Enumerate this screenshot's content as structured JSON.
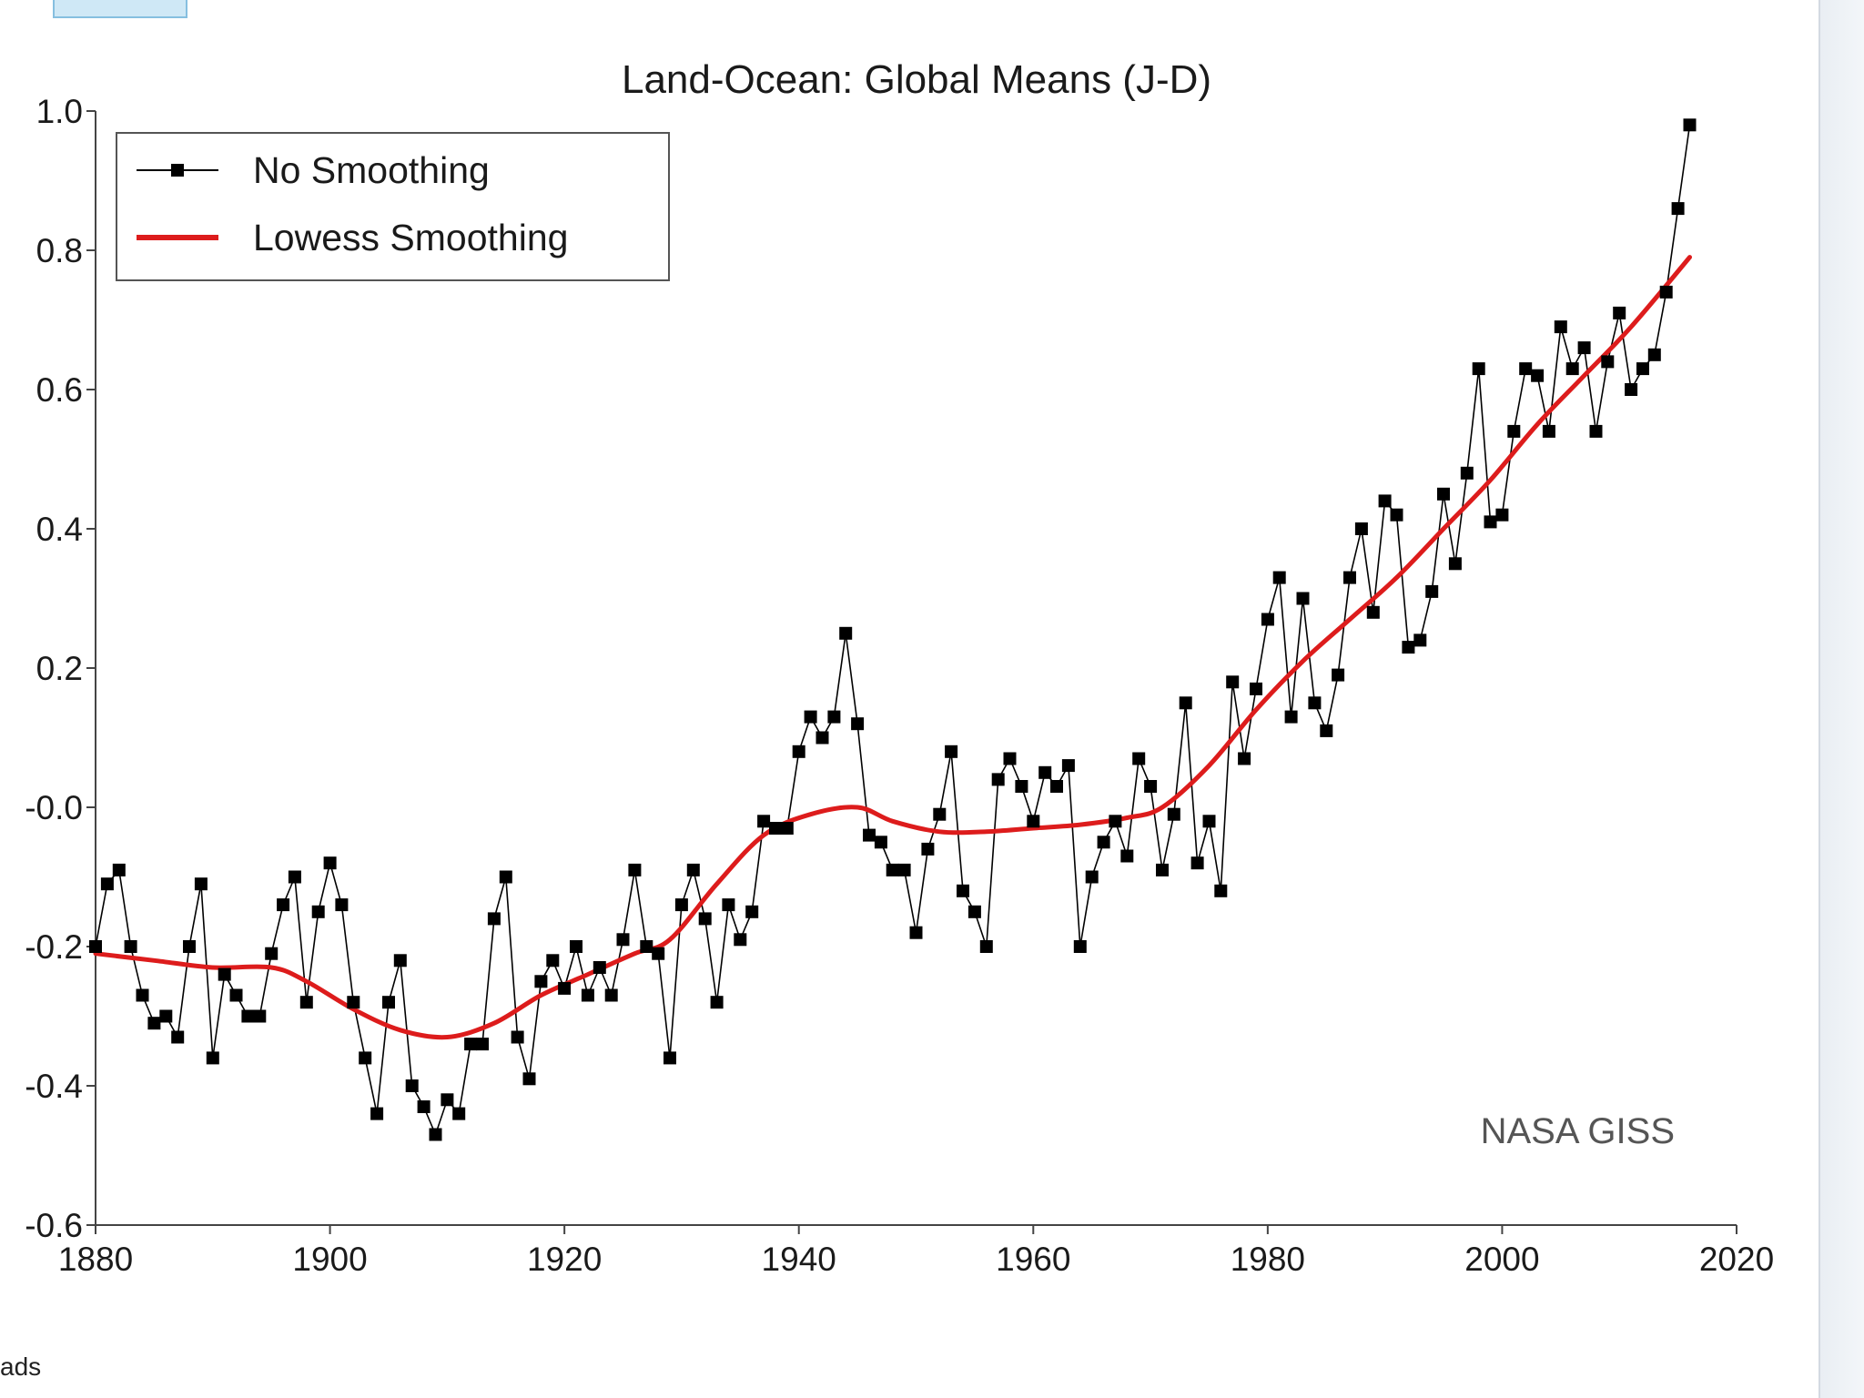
{
  "page": {
    "corner_text": "ads"
  },
  "chart_data": {
    "type": "line",
    "title": "Land-Ocean: Global Means (J-D)",
    "xlabel": "",
    "ylabel": "",
    "xlim": [
      1880,
      2020
    ],
    "ylim": [
      -0.6,
      1.0
    ],
    "x_ticks": [
      1880,
      1900,
      1920,
      1940,
      1960,
      1980,
      2000,
      2020
    ],
    "x_tick_labels": [
      "1880",
      "1900",
      "1920",
      "1940",
      "1960",
      "1980",
      "2000",
      "2020"
    ],
    "y_ticks": [
      1.0,
      0.8,
      0.6,
      0.4,
      0.2,
      0.0,
      -0.2,
      -0.4,
      -0.6
    ],
    "y_tick_labels": [
      "1.0",
      "0.8",
      "0.6",
      "0.4",
      "0.2",
      "-0.0",
      "-0.2",
      "-0.4",
      "-0.6"
    ],
    "grid": false,
    "legend_position": "top-left",
    "annotation": "NASA GISS",
    "colors": {
      "raw": "#000000",
      "smooth": "#dd1c1c"
    },
    "series": [
      {
        "name": "No Smoothing",
        "style": "line-with-square-markers",
        "x": [
          1880,
          1881,
          1882,
          1883,
          1884,
          1885,
          1886,
          1887,
          1888,
          1889,
          1890,
          1891,
          1892,
          1893,
          1894,
          1895,
          1896,
          1897,
          1898,
          1899,
          1900,
          1901,
          1902,
          1903,
          1904,
          1905,
          1906,
          1907,
          1908,
          1909,
          1910,
          1911,
          1912,
          1913,
          1914,
          1915,
          1916,
          1917,
          1918,
          1919,
          1920,
          1921,
          1922,
          1923,
          1924,
          1925,
          1926,
          1927,
          1928,
          1929,
          1930,
          1931,
          1932,
          1933,
          1934,
          1935,
          1936,
          1937,
          1938,
          1939,
          1940,
          1941,
          1942,
          1943,
          1944,
          1945,
          1946,
          1947,
          1948,
          1949,
          1950,
          1951,
          1952,
          1953,
          1954,
          1955,
          1956,
          1957,
          1958,
          1959,
          1960,
          1961,
          1962,
          1963,
          1964,
          1965,
          1966,
          1967,
          1968,
          1969,
          1970,
          1971,
          1972,
          1973,
          1974,
          1975,
          1976,
          1977,
          1978,
          1979,
          1980,
          1981,
          1982,
          1983,
          1984,
          1985,
          1986,
          1987,
          1988,
          1989,
          1990,
          1991,
          1992,
          1993,
          1994,
          1995,
          1996,
          1997,
          1998,
          1999,
          2000,
          2001,
          2002,
          2003,
          2004,
          2005,
          2006,
          2007,
          2008,
          2009,
          2010,
          2011,
          2012,
          2013,
          2014,
          2015,
          2016
        ],
        "values": [
          -0.2,
          -0.11,
          -0.09,
          -0.2,
          -0.27,
          -0.31,
          -0.3,
          -0.33,
          -0.2,
          -0.11,
          -0.36,
          -0.24,
          -0.27,
          -0.3,
          -0.3,
          -0.21,
          -0.14,
          -0.1,
          -0.28,
          -0.15,
          -0.08,
          -0.14,
          -0.28,
          -0.36,
          -0.44,
          -0.28,
          -0.22,
          -0.4,
          -0.43,
          -0.47,
          -0.42,
          -0.44,
          -0.34,
          -0.34,
          -0.16,
          -0.1,
          -0.33,
          -0.39,
          -0.25,
          -0.22,
          -0.26,
          -0.2,
          -0.27,
          -0.23,
          -0.27,
          -0.19,
          -0.09,
          -0.2,
          -0.21,
          -0.36,
          -0.14,
          -0.09,
          -0.16,
          -0.28,
          -0.14,
          -0.19,
          -0.15,
          -0.02,
          -0.03,
          -0.03,
          0.08,
          0.13,
          0.1,
          0.13,
          0.25,
          0.12,
          -0.04,
          -0.05,
          -0.09,
          -0.09,
          -0.18,
          -0.06,
          -0.01,
          0.08,
          -0.12,
          -0.15,
          -0.2,
          0.04,
          0.07,
          0.03,
          -0.02,
          0.05,
          0.03,
          0.06,
          -0.2,
          -0.1,
          -0.05,
          -0.02,
          -0.07,
          0.07,
          0.03,
          -0.09,
          -0.01,
          0.15,
          -0.08,
          -0.02,
          -0.12,
          0.18,
          0.07,
          0.17,
          0.27,
          0.33,
          0.13,
          0.3,
          0.15,
          0.11,
          0.19,
          0.33,
          0.4,
          0.28,
          0.44,
          0.42,
          0.23,
          0.24,
          0.31,
          0.45,
          0.35,
          0.48,
          0.63,
          0.41,
          0.42,
          0.54,
          0.63,
          0.62,
          0.54,
          0.69,
          0.63,
          0.66,
          0.54,
          0.64,
          0.71,
          0.6,
          0.63,
          0.65,
          0.74,
          0.86,
          0.98
        ]
      },
      {
        "name": "Lowess Smoothing",
        "style": "smooth-line",
        "x": [
          1880,
          1885,
          1890,
          1895,
          1898,
          1902,
          1906,
          1910,
          1914,
          1918,
          1922,
          1926,
          1929,
          1933,
          1937,
          1941,
          1945,
          1948,
          1952,
          1956,
          1960,
          1964,
          1968,
          1971,
          1975,
          1979,
          1983,
          1987,
          1991,
          1995,
          1999,
          2003,
          2007,
          2011,
          2016
        ],
        "values": [
          -0.21,
          -0.22,
          -0.23,
          -0.23,
          -0.25,
          -0.29,
          -0.32,
          -0.33,
          -0.31,
          -0.27,
          -0.24,
          -0.21,
          -0.19,
          -0.11,
          -0.04,
          -0.01,
          0.0,
          -0.02,
          -0.035,
          -0.035,
          -0.03,
          -0.025,
          -0.015,
          0.0,
          0.06,
          0.14,
          0.21,
          0.27,
          0.33,
          0.4,
          0.47,
          0.55,
          0.62,
          0.69,
          0.79
        ]
      }
    ]
  }
}
